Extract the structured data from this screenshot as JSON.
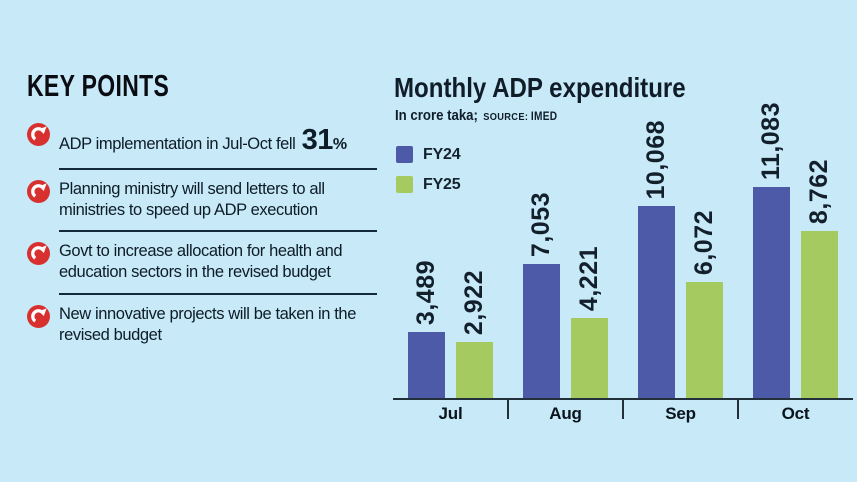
{
  "colors": {
    "background": "#c7e9f8",
    "fy24_blue": "#4c5aa7",
    "fy25_green": "#a5ca5f",
    "accent_red": "#d8302f",
    "ink": "#11202c"
  },
  "key_points": {
    "title": "KEY POINTS",
    "icon_color": "#d8302f",
    "items": [
      {
        "text_before": "ADP implementation in Jul-Oct fell ",
        "highlight": "31",
        "suffix": "%"
      },
      {
        "text": "Planning ministry will send letters to all\nministries to speed up ADP execution"
      },
      {
        "text": "Govt to increase allocation for health and\neducation sectors in the revised budget"
      },
      {
        "text": "New innovative projects will be taken in the\nrevised budget"
      }
    ]
  },
  "chart": {
    "title": "Monthly ADP expenditure",
    "unit_label": "In crore taka;",
    "source_label": "SOURCE:",
    "source_value": "IMED",
    "legend": [
      {
        "label": "FY24",
        "color": "#4c5aa7"
      },
      {
        "label": "FY25",
        "color": "#a5ca5f"
      }
    ]
  },
  "chart_data": {
    "type": "bar",
    "title": "Monthly ADP expenditure",
    "unit": "crore taka",
    "source": "IMED",
    "categories": [
      "Jul",
      "Aug",
      "Sep",
      "Oct"
    ],
    "series": [
      {
        "name": "FY24",
        "color": "#4c5aa7",
        "values": [
          3489,
          7053,
          10068,
          11083
        ],
        "labels": [
          "3,489",
          "7,053",
          "10,068",
          "11,083"
        ]
      },
      {
        "name": "FY25",
        "color": "#a5ca5f",
        "values": [
          2922,
          4221,
          6072,
          8762
        ],
        "labels": [
          "2,922",
          "4,221",
          "6,072",
          "8,762"
        ]
      }
    ],
    "ylim": [
      0,
      11500
    ],
    "grid": false,
    "legend_position": "top-left",
    "bar_value_label_rotation_deg": 90,
    "x_axis_ticks_between_groups": true
  }
}
